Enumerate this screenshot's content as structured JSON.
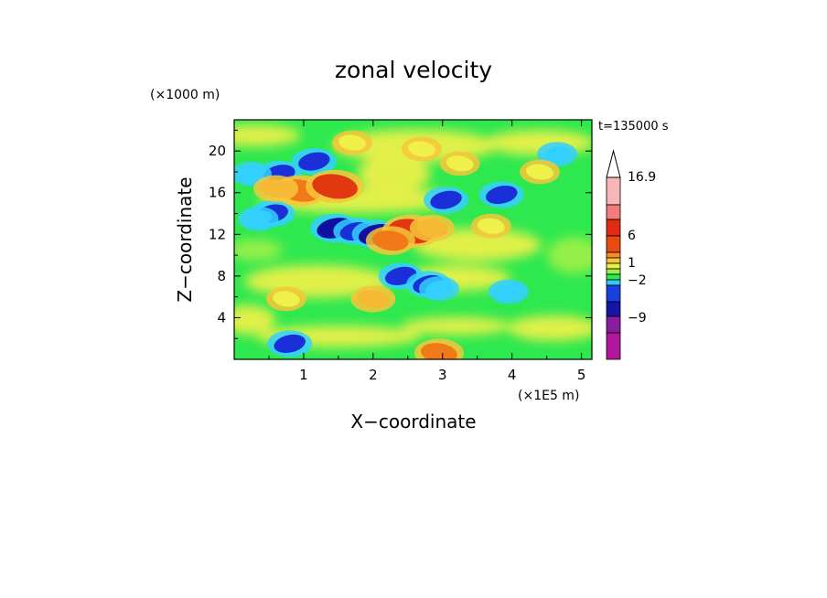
{
  "chart_data": {
    "type": "heatmap",
    "title": "zonal velocity",
    "xlabel": "X−coordinate",
    "ylabel": "Z−coordinate",
    "x_unit": "(×1E5 m)",
    "y_unit": "(×1000 m)",
    "time_label": "t=135000 s",
    "xlim": [
      0,
      5.15
    ],
    "ylim": [
      0,
      23
    ],
    "x_ticks": [
      "1",
      "2",
      "3",
      "4",
      "5"
    ],
    "y_ticks": [
      "4",
      "8",
      "12",
      "16",
      "20"
    ],
    "colorbar": {
      "labels": [
        "16.9",
        "6",
        "1",
        "−2",
        "−9"
      ],
      "colors": [
        "#e8149b",
        "#b0169e",
        "#8a1c9e",
        "#1515a8",
        "#1a3fe0",
        "#33c8ff",
        "#2ee84f",
        "#9af04a",
        "#eaf04a",
        "#f7c53a",
        "#f58e1c",
        "#e84a12",
        "#e22a12",
        "#f07c7c",
        "#f9b6b6"
      ],
      "extend": "max"
    },
    "features": [
      {
        "x": 0.65,
        "z": 17.8,
        "value": -3
      },
      {
        "x": 0.55,
        "z": 14.0,
        "value": -3
      },
      {
        "x": 0.25,
        "z": 17.8,
        "value": -2
      },
      {
        "x": 0.35,
        "z": 13.5,
        "value": -2
      },
      {
        "x": 1.45,
        "z": 12.6,
        "value": -4
      },
      {
        "x": 1.75,
        "z": 12.3,
        "value": -3
      },
      {
        "x": 2.05,
        "z": 12.0,
        "value": -4
      },
      {
        "x": 1.15,
        "z": 19.0,
        "value": -3
      },
      {
        "x": 0.95,
        "z": 16.2,
        "value": 5
      },
      {
        "x": 1.45,
        "z": 16.6,
        "value": 6
      },
      {
        "x": 0.6,
        "z": 16.4,
        "value": 3
      },
      {
        "x": 2.55,
        "z": 12.3,
        "value": 6
      },
      {
        "x": 2.85,
        "z": 12.6,
        "value": 3
      },
      {
        "x": 2.25,
        "z": 11.4,
        "value": 4
      },
      {
        "x": 2.4,
        "z": 8.0,
        "value": -3
      },
      {
        "x": 2.8,
        "z": 7.2,
        "value": -3
      },
      {
        "x": 2.95,
        "z": 6.8,
        "value": -2
      },
      {
        "x": 3.05,
        "z": 15.3,
        "value": -3
      },
      {
        "x": 3.85,
        "z": 15.8,
        "value": -3
      },
      {
        "x": 4.65,
        "z": 19.7,
        "value": -2
      },
      {
        "x": 3.95,
        "z": 6.5,
        "value": -2
      },
      {
        "x": 3.25,
        "z": 18.8,
        "value": 2
      },
      {
        "x": 4.4,
        "z": 18.0,
        "value": 2
      },
      {
        "x": 3.7,
        "z": 12.8,
        "value": 2
      },
      {
        "x": 0.75,
        "z": 5.8,
        "value": 2
      },
      {
        "x": 2.0,
        "z": 5.8,
        "value": 3
      },
      {
        "x": 0.8,
        "z": 1.5,
        "value": -3
      },
      {
        "x": 2.95,
        "z": 0.6,
        "value": 4
      },
      {
        "x": 1.7,
        "z": 20.8,
        "value": 2
      },
      {
        "x": 2.7,
        "z": 20.2,
        "value": 2
      }
    ]
  }
}
